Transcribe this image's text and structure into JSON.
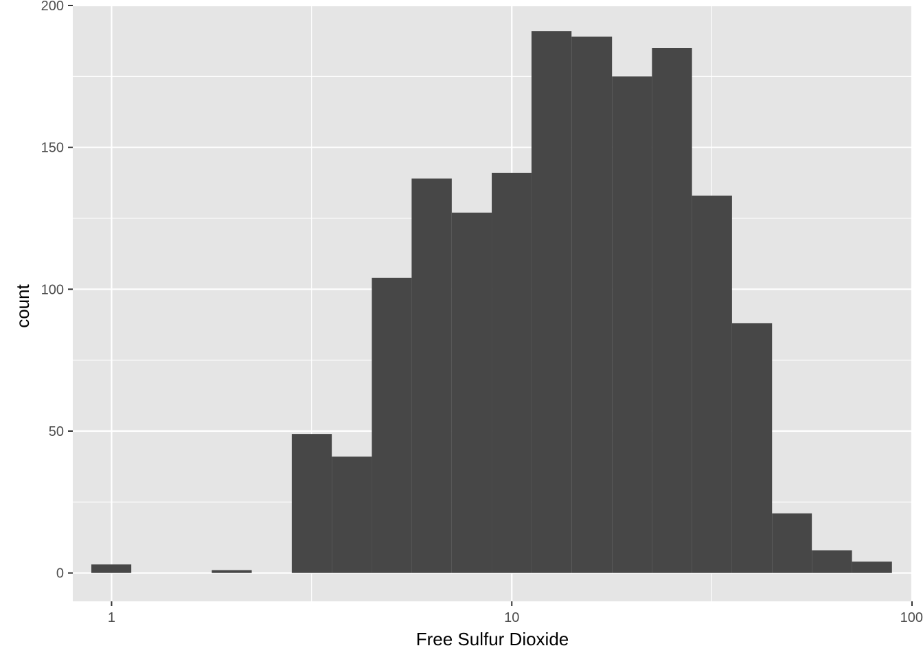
{
  "chart_data": {
    "type": "bar",
    "subtype": "histogram",
    "xlabel": "Free Sulfur Dioxide",
    "ylabel": "count",
    "x_scale": "log10",
    "xlim": [
      0.8,
      100
    ],
    "ylim": [
      -10,
      200
    ],
    "x_ticks": [
      {
        "value": 1,
        "label": "1"
      },
      {
        "value": 10,
        "label": "10"
      },
      {
        "value": 100,
        "label": "100"
      }
    ],
    "y_ticks": [
      {
        "value": 0,
        "label": "0"
      },
      {
        "value": 50,
        "label": "50"
      },
      {
        "value": 100,
        "label": "100"
      },
      {
        "value": 150,
        "label": "150"
      },
      {
        "value": 200,
        "label": "200"
      }
    ],
    "x_minor_gridlines": [
      3.16,
      31.6
    ],
    "y_minor_gridlines": [
      25,
      75,
      125,
      175
    ],
    "bins": [
      {
        "x0": 0.89,
        "x1": 1.12,
        "count": 3
      },
      {
        "x0": 1.12,
        "x1": 1.41,
        "count": 0
      },
      {
        "x0": 1.41,
        "x1": 1.78,
        "count": 0
      },
      {
        "x0": 1.78,
        "x1": 2.24,
        "count": 1
      },
      {
        "x0": 2.24,
        "x1": 2.82,
        "count": 0
      },
      {
        "x0": 2.82,
        "x1": 3.55,
        "count": 49
      },
      {
        "x0": 3.55,
        "x1": 4.47,
        "count": 41
      },
      {
        "x0": 4.47,
        "x1": 5.62,
        "count": 104
      },
      {
        "x0": 5.62,
        "x1": 7.08,
        "count": 139
      },
      {
        "x0": 7.08,
        "x1": 8.91,
        "count": 127
      },
      {
        "x0": 8.91,
        "x1": 11.2,
        "count": 141
      },
      {
        "x0": 11.2,
        "x1": 14.1,
        "count": 191
      },
      {
        "x0": 14.1,
        "x1": 17.8,
        "count": 189
      },
      {
        "x0": 17.8,
        "x1": 22.4,
        "count": 175
      },
      {
        "x0": 22.4,
        "x1": 28.2,
        "count": 185
      },
      {
        "x0": 28.2,
        "x1": 35.5,
        "count": 133
      },
      {
        "x0": 35.5,
        "x1": 44.7,
        "count": 88
      },
      {
        "x0": 44.7,
        "x1": 56.2,
        "count": 21
      },
      {
        "x0": 56.2,
        "x1": 70.8,
        "count": 8
      },
      {
        "x0": 70.8,
        "x1": 89.1,
        "count": 4
      }
    ],
    "colors": {
      "panel_background": "#e5e5e5",
      "grid": "#ffffff",
      "bar_fill": "#474747",
      "tick_text": "#4d4d4d",
      "axis_title": "#000000"
    },
    "grid": true,
    "legend": "none"
  }
}
